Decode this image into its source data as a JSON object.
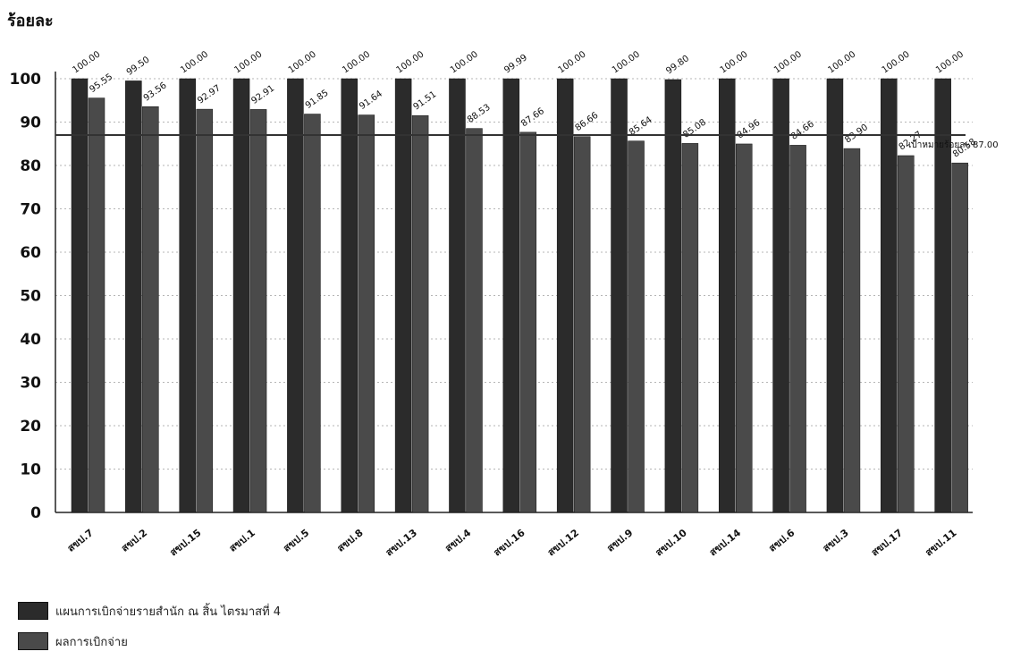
{
  "chart_data": {
    "type": "bar",
    "ylabel": "ร้อยละ",
    "ylim": [
      0,
      100
    ],
    "yticks": [
      0,
      10,
      20,
      30,
      40,
      50,
      60,
      70,
      80,
      90,
      100
    ],
    "grid": true,
    "legend_position": "bottom-left",
    "categories": [
      "สขป.7",
      "สขป.2",
      "สขป.15",
      "สขป.1",
      "สขป.5",
      "สขป.8",
      "สขป.13",
      "สขป.4",
      "สขป.16",
      "สขป.12",
      "สขป.9",
      "สขป.10",
      "สขป.14",
      "สขป.6",
      "สขป.3",
      "สขป.17",
      "สขป.11"
    ],
    "series": [
      {
        "name": "แผนการเบิกจ่ายรายสำนัก ณ สิ้น ไตรมาสที่ 4",
        "color": "#2b2b2b",
        "values": [
          100.0,
          99.5,
          100.0,
          100.0,
          100.0,
          100.0,
          100.0,
          100.0,
          99.99,
          100.0,
          100.0,
          99.8,
          100.0,
          100.0,
          100.0,
          100.0,
          100.0
        ]
      },
      {
        "name": "ผลการเบิกจ่าย",
        "color": "#4a4a4a",
        "values": [
          95.55,
          93.56,
          92.97,
          92.91,
          91.85,
          91.64,
          91.51,
          88.53,
          87.66,
          86.66,
          85.64,
          85.08,
          84.96,
          84.66,
          83.9,
          82.27,
          80.58
        ]
      }
    ],
    "value_labels": [
      [
        "100.00",
        "99.50",
        "100.00",
        "100.00",
        "100.00",
        "100.00",
        "100.00",
        "100.00",
        "99.99",
        "100.00",
        "100.00",
        "99.80",
        "100.00",
        "100.00",
        "100.00",
        "100.00",
        "100.00"
      ],
      [
        "95.55",
        "93.56",
        "92.97",
        "92.91",
        "91.85",
        "91.64",
        "91.51",
        "88.53",
        "87.66",
        "86.66",
        "85.64",
        "85.08",
        "84.96",
        "84.66",
        "83.90",
        "82.27",
        "80.58"
      ]
    ],
    "target": {
      "value": 87.0,
      "label": "เป้าหมายร้อยละ 87.00"
    }
  }
}
